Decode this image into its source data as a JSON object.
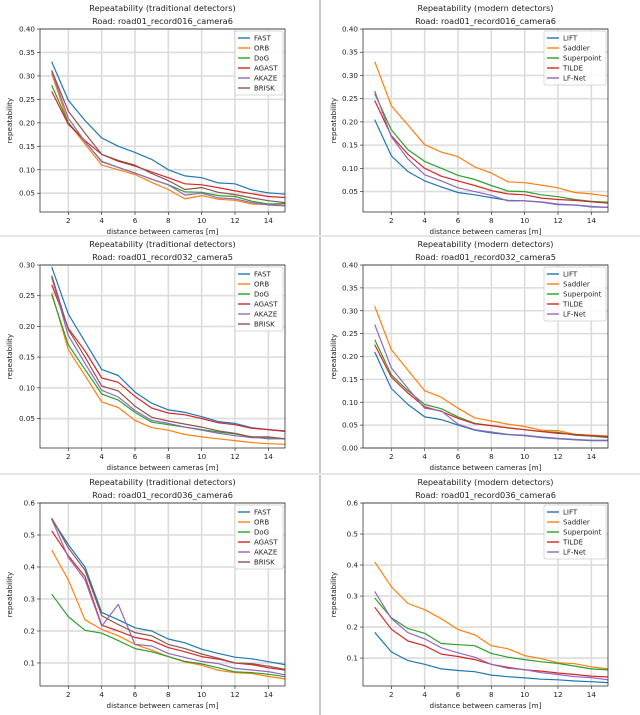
{
  "colors": {
    "blue": "#1f77b4",
    "orange": "#ff7f0e",
    "green": "#2ca02c",
    "red": "#d62728",
    "purple": "#9467bd",
    "brown": "#8c564b"
  },
  "chart_data": [
    {
      "type": "line",
      "title": "Repeatability (traditional detectors)",
      "subtitle": "Road: road01_record016_camera6",
      "xlabel": "distance between cameras [m]",
      "ylabel": "repeatability",
      "xlim": [
        0.3,
        15
      ],
      "ylim": [
        0.01,
        0.4
      ],
      "xticks": [
        2,
        4,
        6,
        8,
        10,
        12,
        14
      ],
      "yticks": [
        0.05,
        0.1,
        0.15,
        0.2,
        0.25,
        0.3,
        0.35,
        0.4
      ],
      "grid": true,
      "legend": "top-right",
      "x": [
        1,
        2,
        3,
        4,
        5,
        6,
        7,
        8,
        9,
        10,
        11,
        12,
        13,
        14,
        15
      ],
      "series": [
        {
          "name": "FAST",
          "color": "#1f77b4",
          "values": [
            0.33,
            0.248,
            0.205,
            0.168,
            0.15,
            0.137,
            0.122,
            0.1,
            0.087,
            0.083,
            0.072,
            0.07,
            0.057,
            0.051,
            0.048
          ]
        },
        {
          "name": "ORB",
          "color": "#ff7f0e",
          "values": [
            0.305,
            0.2,
            0.155,
            0.11,
            0.1,
            0.09,
            0.073,
            0.058,
            0.038,
            0.045,
            0.037,
            0.035,
            0.027,
            0.026,
            0.024
          ]
        },
        {
          "name": "DoG",
          "color": "#2ca02c",
          "values": [
            0.28,
            0.2,
            0.16,
            0.118,
            0.105,
            0.093,
            0.08,
            0.068,
            0.053,
            0.052,
            0.045,
            0.043,
            0.033,
            0.027,
            0.028
          ]
        },
        {
          "name": "AGAST",
          "color": "#d62728",
          "values": [
            0.267,
            0.197,
            0.162,
            0.133,
            0.118,
            0.108,
            0.095,
            0.083,
            0.07,
            0.068,
            0.062,
            0.055,
            0.049,
            0.043,
            0.041
          ]
        },
        {
          "name": "AKAZE",
          "color": "#9467bd",
          "values": [
            0.31,
            0.21,
            0.16,
            0.117,
            0.105,
            0.093,
            0.08,
            0.068,
            0.046,
            0.05,
            0.04,
            0.038,
            0.03,
            0.025,
            0.023
          ]
        },
        {
          "name": "BRISK",
          "color": "#8c564b",
          "values": [
            0.312,
            0.225,
            0.178,
            0.133,
            0.12,
            0.11,
            0.092,
            0.077,
            0.058,
            0.062,
            0.052,
            0.047,
            0.04,
            0.034,
            0.03
          ]
        }
      ]
    },
    {
      "type": "line",
      "title": "Repeatability (modern detectors)",
      "subtitle": "Road: road01_record016_camera6",
      "xlabel": "distance between cameras [m]",
      "ylabel": "repeatability",
      "xlim": [
        0.3,
        15
      ],
      "ylim": [
        0.006,
        0.4
      ],
      "xticks": [
        2,
        4,
        6,
        8,
        10,
        12,
        14
      ],
      "yticks": [
        0.05,
        0.1,
        0.15,
        0.2,
        0.25,
        0.3,
        0.35,
        0.4
      ],
      "grid": true,
      "legend": "top-right",
      "x": [
        1,
        2,
        3,
        4,
        5,
        6,
        7,
        8,
        9,
        10,
        11,
        12,
        13,
        14,
        15
      ],
      "series": [
        {
          "name": "LIFT",
          "color": "#1f77b4",
          "values": [
            0.205,
            0.127,
            0.093,
            0.073,
            0.06,
            0.048,
            0.043,
            0.037,
            0.031,
            0.03,
            0.027,
            0.022,
            0.021,
            0.017,
            0.016
          ]
        },
        {
          "name": "Saddler",
          "color": "#ff7f0e",
          "values": [
            0.33,
            0.235,
            0.193,
            0.151,
            0.135,
            0.125,
            0.103,
            0.09,
            0.071,
            0.069,
            0.064,
            0.058,
            0.048,
            0.045,
            0.04
          ]
        },
        {
          "name": "Superpoint",
          "color": "#2ca02c",
          "values": [
            0.261,
            0.183,
            0.14,
            0.115,
            0.1,
            0.085,
            0.076,
            0.063,
            0.051,
            0.05,
            0.043,
            0.039,
            0.033,
            0.029,
            0.027
          ]
        },
        {
          "name": "TILDE",
          "color": "#d62728",
          "values": [
            0.246,
            0.17,
            0.13,
            0.1,
            0.083,
            0.073,
            0.063,
            0.052,
            0.045,
            0.043,
            0.036,
            0.033,
            0.031,
            0.028,
            0.025
          ]
        },
        {
          "name": "LF-Net",
          "color": "#9467bd",
          "values": [
            0.267,
            0.168,
            0.12,
            0.086,
            0.073,
            0.058,
            0.05,
            0.042,
            0.03,
            0.03,
            0.028,
            0.023,
            0.021,
            0.018,
            0.016
          ]
        }
      ]
    },
    {
      "type": "line",
      "title": "Repeatability (traditional detectors)",
      "subtitle": "Road: road01_record032_camera5",
      "xlabel": "distance between cameras [m]",
      "ylabel": "repeatability",
      "xlim": [
        0.3,
        15
      ],
      "ylim": [
        0.002,
        0.3
      ],
      "xticks": [
        2,
        4,
        6,
        8,
        10,
        12,
        14
      ],
      "yticks": [
        0.05,
        0.1,
        0.15,
        0.2,
        0.25,
        0.3
      ],
      "grid": true,
      "legend": "top-right",
      "x": [
        1,
        2,
        3,
        4,
        5,
        6,
        7,
        8,
        9,
        10,
        11,
        12,
        13,
        14,
        15
      ],
      "series": [
        {
          "name": "FAST",
          "color": "#1f77b4",
          "values": [
            0.297,
            0.22,
            0.175,
            0.13,
            0.12,
            0.093,
            0.075,
            0.064,
            0.06,
            0.053,
            0.045,
            0.042,
            0.035,
            0.032,
            0.03
          ]
        },
        {
          "name": "ORB",
          "color": "#ff7f0e",
          "values": [
            0.255,
            0.162,
            0.12,
            0.077,
            0.068,
            0.047,
            0.035,
            0.031,
            0.024,
            0.02,
            0.017,
            0.014,
            0.011,
            0.009,
            0.008
          ]
        },
        {
          "name": "DoG",
          "color": "#2ca02c",
          "values": [
            0.252,
            0.17,
            0.13,
            0.09,
            0.08,
            0.06,
            0.044,
            0.04,
            0.036,
            0.032,
            0.028,
            0.025,
            0.02,
            0.017,
            0.017
          ]
        },
        {
          "name": "AGAST",
          "color": "#d62728",
          "values": [
            0.268,
            0.197,
            0.16,
            0.116,
            0.109,
            0.086,
            0.067,
            0.059,
            0.056,
            0.05,
            0.043,
            0.04,
            0.034,
            0.032,
            0.029
          ]
        },
        {
          "name": "AKAZE",
          "color": "#9467bd",
          "values": [
            0.28,
            0.185,
            0.14,
            0.096,
            0.085,
            0.063,
            0.047,
            0.042,
            0.036,
            0.031,
            0.026,
            0.022,
            0.019,
            0.018,
            0.017
          ]
        },
        {
          "name": "BRISK",
          "color": "#8c564b",
          "values": [
            0.283,
            0.195,
            0.15,
            0.103,
            0.095,
            0.07,
            0.052,
            0.046,
            0.041,
            0.036,
            0.03,
            0.026,
            0.02,
            0.02,
            0.017
          ]
        }
      ]
    },
    {
      "type": "line",
      "title": "Repeatability (modern detectors)",
      "subtitle": "Road: road01_record032_camera5",
      "xlabel": "distance between cameras [m]",
      "ylabel": "repeatability",
      "xlim": [
        0.3,
        15
      ],
      "ylim": [
        0,
        0.4
      ],
      "xticks": [
        2,
        4,
        6,
        8,
        10,
        12,
        14
      ],
      "yticks": [
        0.0,
        0.05,
        0.1,
        0.15,
        0.2,
        0.25,
        0.3,
        0.35,
        0.4
      ],
      "grid": true,
      "legend": "top-right",
      "x": [
        1,
        2,
        3,
        4,
        5,
        6,
        7,
        8,
        9,
        10,
        11,
        12,
        13,
        14,
        15
      ],
      "series": [
        {
          "name": "LIFT",
          "color": "#1f77b4",
          "values": [
            0.21,
            0.13,
            0.095,
            0.068,
            0.062,
            0.05,
            0.039,
            0.033,
            0.029,
            0.027,
            0.023,
            0.02,
            0.018,
            0.016,
            0.016
          ]
        },
        {
          "name": "Saddler",
          "color": "#ff7f0e",
          "values": [
            0.31,
            0.215,
            0.17,
            0.125,
            0.111,
            0.087,
            0.066,
            0.059,
            0.052,
            0.047,
            0.039,
            0.038,
            0.03,
            0.028,
            0.026
          ]
        },
        {
          "name": "Superpoint",
          "color": "#2ca02c",
          "values": [
            0.237,
            0.16,
            0.125,
            0.095,
            0.086,
            0.068,
            0.054,
            0.049,
            0.044,
            0.04,
            0.036,
            0.034,
            0.028,
            0.026,
            0.023
          ]
        },
        {
          "name": "TILDE",
          "color": "#d62728",
          "values": [
            0.226,
            0.155,
            0.12,
            0.09,
            0.08,
            0.065,
            0.053,
            0.049,
            0.044,
            0.04,
            0.036,
            0.032,
            0.03,
            0.027,
            0.025
          ]
        },
        {
          "name": "LF-Net",
          "color": "#9467bd",
          "values": [
            0.27,
            0.175,
            0.13,
            0.087,
            0.081,
            0.052,
            0.04,
            0.035,
            0.03,
            0.028,
            0.024,
            0.021,
            0.019,
            0.017,
            0.017
          ]
        }
      ]
    },
    {
      "type": "line",
      "title": "Repeatability (traditional detectors)",
      "subtitle": "Road: road01_record036_camera6",
      "xlabel": "distance between cameras [m]",
      "ylabel": "repeatability",
      "xlim": [
        0.3,
        15
      ],
      "ylim": [
        0.028,
        0.6
      ],
      "xticks": [
        2,
        4,
        6,
        8,
        10,
        12,
        14
      ],
      "yticks": [
        0.1,
        0.2,
        0.3,
        0.4,
        0.5,
        0.6
      ],
      "grid": true,
      "legend": "top-right",
      "x": [
        1,
        2,
        3,
        4,
        5,
        6,
        7,
        8,
        9,
        10,
        11,
        12,
        13,
        14,
        15
      ],
      "series": [
        {
          "name": "FAST",
          "color": "#1f77b4",
          "values": [
            0.55,
            0.47,
            0.4,
            0.258,
            0.235,
            0.21,
            0.2,
            0.175,
            0.163,
            0.143,
            0.13,
            0.118,
            0.113,
            0.104,
            0.095
          ]
        },
        {
          "name": "ORB",
          "color": "#ff7f0e",
          "values": [
            0.453,
            0.36,
            0.235,
            0.205,
            0.185,
            0.158,
            0.14,
            0.12,
            0.103,
            0.093,
            0.077,
            0.07,
            0.067,
            0.058,
            0.05
          ]
        },
        {
          "name": "DoG",
          "color": "#2ca02c",
          "values": [
            0.315,
            0.245,
            0.202,
            0.193,
            0.17,
            0.145,
            0.135,
            0.12,
            0.105,
            0.097,
            0.085,
            0.072,
            0.07,
            0.065,
            0.057
          ]
        },
        {
          "name": "AGAST",
          "color": "#d62728",
          "values": [
            0.513,
            0.435,
            0.37,
            0.218,
            0.2,
            0.18,
            0.17,
            0.148,
            0.135,
            0.12,
            0.112,
            0.1,
            0.095,
            0.085,
            0.078
          ]
        },
        {
          "name": "AKAZE",
          "color": "#9467bd",
          "values": [
            0.55,
            0.43,
            0.36,
            0.215,
            0.283,
            0.158,
            0.153,
            0.13,
            0.117,
            0.105,
            0.098,
            0.083,
            0.078,
            0.073,
            0.063
          ]
        },
        {
          "name": "BRISK",
          "color": "#8c564b",
          "values": [
            0.553,
            0.46,
            0.39,
            0.248,
            0.22,
            0.195,
            0.185,
            0.158,
            0.145,
            0.128,
            0.115,
            0.1,
            0.098,
            0.09,
            0.08
          ]
        }
      ]
    },
    {
      "type": "line",
      "title": "Repeatability (modern detectors)",
      "subtitle": "Road: road01_record036_camera6",
      "xlabel": "distance between cameras [m]",
      "ylabel": "repeatability",
      "xlim": [
        0.3,
        15
      ],
      "ylim": [
        0.01,
        0.6
      ],
      "xticks": [
        2,
        4,
        6,
        8,
        10,
        12,
        14
      ],
      "yticks": [
        0.1,
        0.2,
        0.3,
        0.4,
        0.5,
        0.6
      ],
      "grid": true,
      "legend": "top-right",
      "x": [
        1,
        2,
        3,
        4,
        5,
        6,
        7,
        8,
        9,
        10,
        11,
        12,
        13,
        14,
        15
      ],
      "series": [
        {
          "name": "LIFT",
          "color": "#1f77b4",
          "values": [
            0.183,
            0.12,
            0.092,
            0.08,
            0.065,
            0.06,
            0.056,
            0.045,
            0.04,
            0.036,
            0.032,
            0.03,
            0.026,
            0.024,
            0.021
          ]
        },
        {
          "name": "Saddler",
          "color": "#ff7f0e",
          "values": [
            0.41,
            0.33,
            0.276,
            0.256,
            0.227,
            0.192,
            0.175,
            0.14,
            0.13,
            0.108,
            0.098,
            0.085,
            0.082,
            0.072,
            0.065
          ]
        },
        {
          "name": "Superpoint",
          "color": "#2ca02c",
          "values": [
            0.294,
            0.23,
            0.195,
            0.18,
            0.147,
            0.143,
            0.14,
            0.115,
            0.103,
            0.095,
            0.088,
            0.083,
            0.074,
            0.065,
            0.062
          ]
        },
        {
          "name": "TILDE",
          "color": "#d62728",
          "values": [
            0.264,
            0.193,
            0.155,
            0.14,
            0.113,
            0.105,
            0.095,
            0.08,
            0.07,
            0.062,
            0.058,
            0.052,
            0.047,
            0.042,
            0.039
          ]
        },
        {
          "name": "LF-Net",
          "color": "#9467bd",
          "values": [
            0.315,
            0.228,
            0.182,
            0.162,
            0.133,
            0.117,
            0.103,
            0.08,
            0.067,
            0.063,
            0.053,
            0.047,
            0.04,
            0.037,
            0.03
          ]
        }
      ]
    }
  ]
}
